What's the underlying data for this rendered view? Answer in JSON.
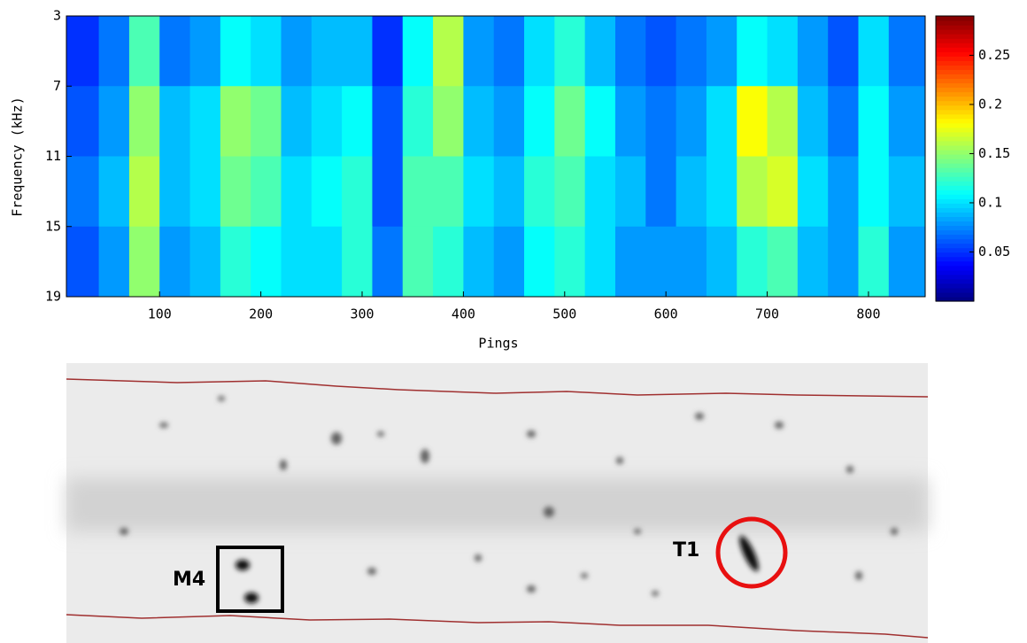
{
  "chart_data": {
    "type": "heatmap",
    "colormap": "jet",
    "xlabel": "Pings",
    "ylabel": "Frequency (kHz)",
    "x_edges": [
      8,
      40,
      70,
      100,
      130,
      160,
      190,
      220,
      250,
      280,
      310,
      340,
      370,
      400,
      430,
      460,
      490,
      520,
      550,
      580,
      610,
      640,
      670,
      700,
      730,
      760,
      790,
      820,
      856
    ],
    "y_edges": [
      3,
      7,
      11,
      15,
      19
    ],
    "values": [
      [
        0.05,
        0.07,
        0.13,
        0.07,
        0.08,
        0.11,
        0.1,
        0.08,
        0.09,
        0.09,
        0.05,
        0.11,
        0.16,
        0.08,
        0.07,
        0.1,
        0.12,
        0.09,
        0.07,
        0.06,
        0.07,
        0.08,
        0.11,
        0.1,
        0.08,
        0.06,
        0.1,
        0.07
      ],
      [
        0.06,
        0.08,
        0.15,
        0.09,
        0.1,
        0.15,
        0.14,
        0.09,
        0.1,
        0.11,
        0.06,
        0.12,
        0.15,
        0.09,
        0.08,
        0.11,
        0.14,
        0.11,
        0.08,
        0.07,
        0.08,
        0.1,
        0.18,
        0.16,
        0.09,
        0.07,
        0.11,
        0.08
      ],
      [
        0.07,
        0.09,
        0.16,
        0.09,
        0.1,
        0.14,
        0.13,
        0.1,
        0.11,
        0.12,
        0.06,
        0.13,
        0.13,
        0.1,
        0.09,
        0.12,
        0.13,
        0.1,
        0.09,
        0.07,
        0.09,
        0.1,
        0.16,
        0.17,
        0.1,
        0.08,
        0.11,
        0.09
      ],
      [
        0.06,
        0.08,
        0.15,
        0.08,
        0.09,
        0.12,
        0.11,
        0.1,
        0.1,
        0.12,
        0.07,
        0.13,
        0.12,
        0.09,
        0.08,
        0.11,
        0.12,
        0.1,
        0.08,
        0.08,
        0.08,
        0.09,
        0.12,
        0.13,
        0.09,
        0.08,
        0.12,
        0.08
      ]
    ],
    "xlim": [
      8,
      856
    ],
    "ylim": [
      3,
      19
    ],
    "y_reversed": true,
    "xticks": [
      100,
      200,
      300,
      400,
      500,
      600,
      700,
      800
    ],
    "yticks": [
      3,
      7,
      11,
      15,
      19
    ],
    "clim": [
      0,
      0.29
    ],
    "cticks": [
      0.05,
      0.1,
      0.15,
      0.2,
      0.25
    ]
  },
  "sonar_image": {
    "annotations": [
      {
        "label": "M4",
        "color": "#000000"
      },
      {
        "label": "T1",
        "color": "#e81010"
      }
    ]
  }
}
